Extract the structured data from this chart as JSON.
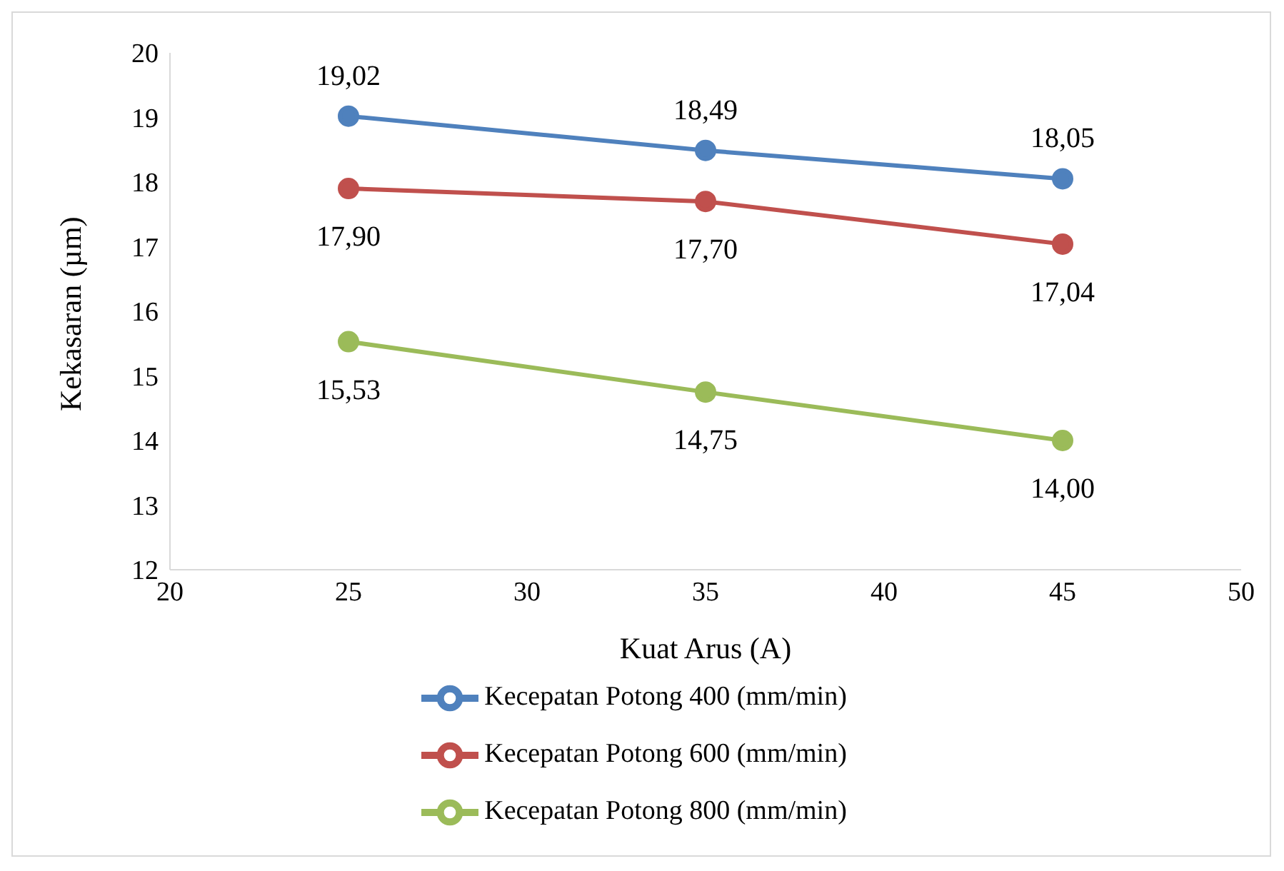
{
  "chart_data": {
    "type": "line",
    "xlabel": "Kuat Arus (A)",
    "ylabel": "Kekasaran (µm)",
    "x": [
      25,
      35,
      45
    ],
    "series": [
      {
        "name": "Kecepatan Potong 400 (mm/min)",
        "color": "#4f81bd",
        "values": [
          19.02,
          18.49,
          18.05
        ],
        "value_labels": [
          "19,02",
          "18,49",
          "18,05"
        ]
      },
      {
        "name": "Kecepatan Potong 600 (mm/min)",
        "color": "#c0504d",
        "values": [
          17.9,
          17.7,
          17.04
        ],
        "value_labels": [
          "17,90",
          "17,70",
          "17,04"
        ]
      },
      {
        "name": "Kecepatan Potong 800 (mm/min)",
        "color": "#9bbb59",
        "values": [
          15.53,
          14.75,
          14.0
        ],
        "value_labels": [
          "15,53",
          "14,75",
          "14,00"
        ]
      }
    ],
    "xlim": [
      20,
      50
    ],
    "xticks": [
      20,
      25,
      30,
      35,
      40,
      45,
      50
    ],
    "ylim": [
      12,
      20
    ],
    "yticks": [
      12,
      13,
      14,
      15,
      16,
      17,
      18,
      19,
      20
    ],
    "grid": false,
    "legend": "bottom",
    "marker": "circle",
    "line_style": "solid"
  }
}
